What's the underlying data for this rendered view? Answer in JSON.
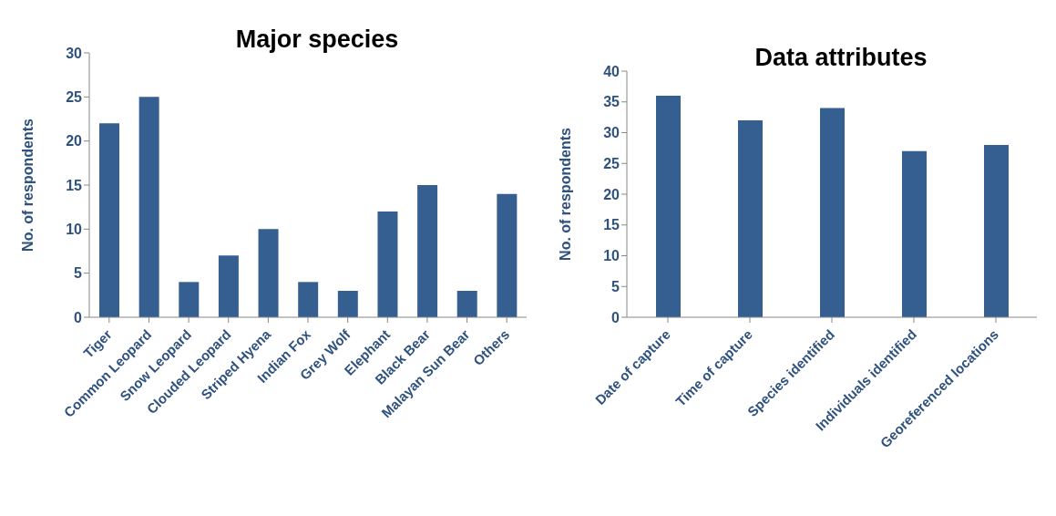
{
  "chart_data": [
    {
      "type": "bar",
      "title": "Major species",
      "ylabel": "No. of respondents",
      "categories": [
        "Tiger",
        "Common Leopard",
        "Snow Leopard",
        "Clouded Leopard",
        "Striped Hyena",
        "Indian Fox",
        "Grey Wolf",
        "Elephant",
        "Black Bear",
        "Malayan Sun Bear",
        "Others"
      ],
      "values": [
        22,
        25,
        4,
        7,
        10,
        4,
        3,
        12,
        15,
        3,
        14
      ],
      "color": "#355f91",
      "ylim": [
        0,
        30
      ],
      "yticks": [
        0,
        5,
        10,
        15,
        20,
        25,
        30
      ],
      "grid": false,
      "legend": false
    },
    {
      "type": "bar",
      "title": "Data attributes",
      "ylabel": "No. of respondents",
      "categories": [
        "Date of capture",
        "Time of capture",
        "Species identified",
        "Individuals identified",
        "Georeferenced locations"
      ],
      "values": [
        36,
        32,
        34,
        27,
        28
      ],
      "color": "#355f91",
      "ylim": [
        0,
        40
      ],
      "yticks": [
        0,
        5,
        10,
        15,
        20,
        25,
        30,
        35,
        40
      ],
      "grid": false,
      "legend": false
    }
  ]
}
